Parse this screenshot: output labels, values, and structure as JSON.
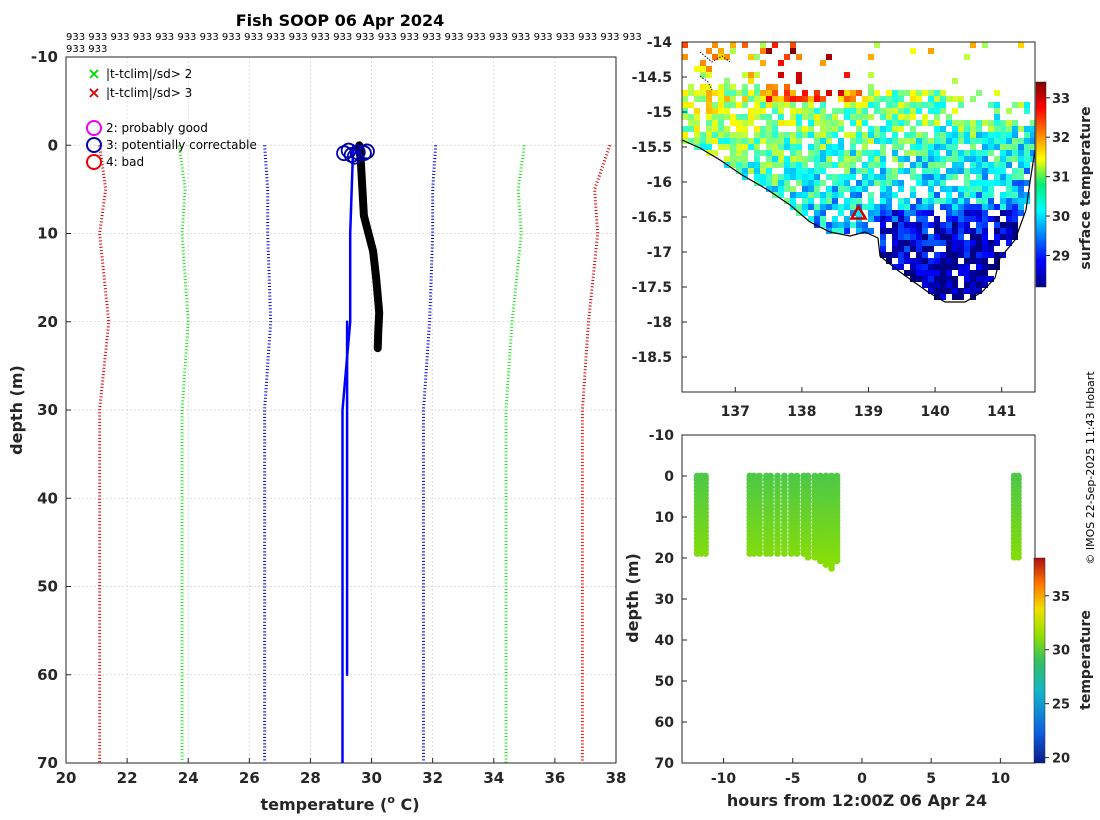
{
  "chart_data": [
    {
      "id": "profile",
      "type": "line",
      "title": "Fish SOOP 06 Apr 2024",
      "xlabel": "temperature (",
      "xlabel_sup": "o",
      "xlabel_tail": " C)",
      "ylabel": "depth (m)",
      "xlim": [
        20,
        38
      ],
      "ylim": [
        -10,
        70
      ],
      "xticks": [
        "20",
        "22",
        "24",
        "26",
        "28",
        "30",
        "32",
        "34",
        "36",
        "38"
      ],
      "yticks": [
        "-10",
        "0",
        "10",
        "20",
        "30",
        "40",
        "50",
        "60",
        "70"
      ],
      "header_row1": "933 933 933 933 933 933 933 933 933 933 933 933 933 933 933 933 933 933 933 933 933 933 933 933 933 933",
      "header_row2": "933 933",
      "legend": [
        {
          "marker": "×",
          "color": "#00dd00",
          "label": "|t-tclim|/sd> 2"
        },
        {
          "marker": "×",
          "color": "#dd0000",
          "label": "|t-tclim|/sd> 3"
        },
        {
          "marker": "○",
          "color": "#ee00ee",
          "label": "2: probably good"
        },
        {
          "marker": "○",
          "color": "#0000aa",
          "label": "3: potentially correctable"
        },
        {
          "marker": "○",
          "color": "#ee0000",
          "label": "4: bad"
        }
      ],
      "series": [
        {
          "name": "clim +3sd",
          "color": "#dd0000",
          "style": "dotted",
          "depth": [
            0,
            5,
            10,
            20,
            30,
            70
          ],
          "temp": [
            37.8,
            37.3,
            37.4,
            37.1,
            36.9,
            36.9
          ]
        },
        {
          "name": "clim +2sd",
          "color": "#22dd22",
          "style": "dotted",
          "depth": [
            0,
            5,
            10,
            20,
            30,
            70
          ],
          "temp": [
            35.0,
            34.8,
            34.9,
            34.6,
            34.4,
            34.4
          ]
        },
        {
          "name": "clim +1sd",
          "color": "#0000cc",
          "style": "dotted",
          "depth": [
            0,
            5,
            10,
            20,
            30,
            70
          ],
          "temp": [
            32.1,
            32.0,
            32.0,
            31.9,
            31.7,
            31.7
          ]
        },
        {
          "name": "clim -1sd",
          "color": "#0000cc",
          "style": "dotted",
          "depth": [
            0,
            5,
            10,
            20,
            30,
            70
          ],
          "temp": [
            26.5,
            26.6,
            26.6,
            26.7,
            26.5,
            26.5
          ]
        },
        {
          "name": "clim -2sd",
          "color": "#22dd22",
          "style": "dotted",
          "depth": [
            0,
            5,
            10,
            20,
            30,
            70
          ],
          "temp": [
            23.7,
            23.9,
            23.8,
            24.0,
            23.8,
            23.8
          ]
        },
        {
          "name": "clim -3sd",
          "color": "#dd0000",
          "style": "dotted",
          "depth": [
            0,
            5,
            10,
            20,
            30,
            70
          ],
          "temp": [
            21.1,
            21.3,
            21.1,
            21.4,
            21.1,
            21.1
          ]
        },
        {
          "name": "climatology mean",
          "color": "#0000ff",
          "style": "solid",
          "depth": [
            0,
            5,
            10,
            20,
            30,
            70
          ],
          "temp": [
            29.4,
            29.35,
            29.3,
            29.3,
            29.05,
            29.05
          ]
        },
        {
          "name": "vertical blue",
          "color": "#0000ff",
          "style": "solid",
          "depth": [
            20,
            60
          ],
          "temp": [
            29.2,
            29.2
          ]
        },
        {
          "name": "observed profiles",
          "color": "#000000",
          "style": "solid",
          "width": 8,
          "depth": [
            0,
            2,
            5,
            8,
            10,
            12,
            15,
            17,
            19,
            21,
            23
          ],
          "temp": [
            29.6,
            29.65,
            29.7,
            29.75,
            29.9,
            30.05,
            30.15,
            30.2,
            30.25,
            30.22,
            30.2
          ]
        }
      ],
      "flag_circles": {
        "color": "#0000aa",
        "temp": [
          29.1,
          29.25,
          29.35,
          29.55,
          29.75,
          29.85,
          29.45
        ],
        "depth": [
          0.9,
          0.6,
          1.1,
          0.8,
          0.9,
          0.7,
          1.3
        ]
      }
    },
    {
      "id": "map",
      "type": "heatmap",
      "xlim": [
        136.2,
        141.5
      ],
      "ylim": [
        -19,
        -14
      ],
      "xticks": [
        "137",
        "138",
        "139",
        "140",
        "141"
      ],
      "yticks": [
        "-14",
        "-14.5",
        "-15",
        "-15.5",
        "-16",
        "-16.5",
        "-17",
        "-17.5",
        "-18",
        "-18.5"
      ],
      "colorbar_label": "surface temperature",
      "colorbar_ticks": [
        "29",
        "30",
        "31",
        "32",
        "33"
      ],
      "clim": [
        28.2,
        33.4
      ],
      "marker": {
        "symbol": "triangle",
        "color": "#cc0000",
        "lon": 138.85,
        "lat": -16.45
      }
    },
    {
      "id": "timeseries",
      "type": "scatter",
      "xlabel": "hours from 12:00Z 06 Apr 24",
      "ylabel": "depth (m)",
      "xlim": [
        -13,
        12.5
      ],
      "ylim": [
        -10,
        70
      ],
      "xticks": [
        "-10",
        "-5",
        "0",
        "5",
        "10"
      ],
      "yticks": [
        "-10",
        "0",
        "10",
        "20",
        "30",
        "40",
        "50",
        "60",
        "70"
      ],
      "colorbar_label": "temperature",
      "colorbar_ticks": [
        "20",
        "25",
        "30",
        "35"
      ],
      "clim": [
        19.5,
        38.5
      ],
      "casts": [
        {
          "hour": -11.9,
          "maxdepth": 19
        },
        {
          "hour": -11.6,
          "maxdepth": 19
        },
        {
          "hour": -11.3,
          "maxdepth": 19
        },
        {
          "hour": -8.1,
          "maxdepth": 19
        },
        {
          "hour": -7.8,
          "maxdepth": 19
        },
        {
          "hour": -7.4,
          "maxdepth": 19
        },
        {
          "hour": -6.9,
          "maxdepth": 19
        },
        {
          "hour": -6.6,
          "maxdepth": 19
        },
        {
          "hour": -6.1,
          "maxdepth": 19
        },
        {
          "hour": -5.6,
          "maxdepth": 19
        },
        {
          "hour": -5.1,
          "maxdepth": 19
        },
        {
          "hour": -4.7,
          "maxdepth": 19
        },
        {
          "hour": -4.2,
          "maxdepth": 19
        },
        {
          "hour": -3.9,
          "maxdepth": 20
        },
        {
          "hour": -3.4,
          "maxdepth": 20
        },
        {
          "hour": -3.0,
          "maxdepth": 21
        },
        {
          "hour": -2.6,
          "maxdepth": 22
        },
        {
          "hour": -2.2,
          "maxdepth": 23
        },
        {
          "hour": -1.8,
          "maxdepth": 21
        },
        {
          "hour": 11.0,
          "maxdepth": 20
        },
        {
          "hour": 11.3,
          "maxdepth": 20
        }
      ]
    }
  ],
  "watermark": "© IMOS 22-Sep-2025 11:43 Hobart"
}
